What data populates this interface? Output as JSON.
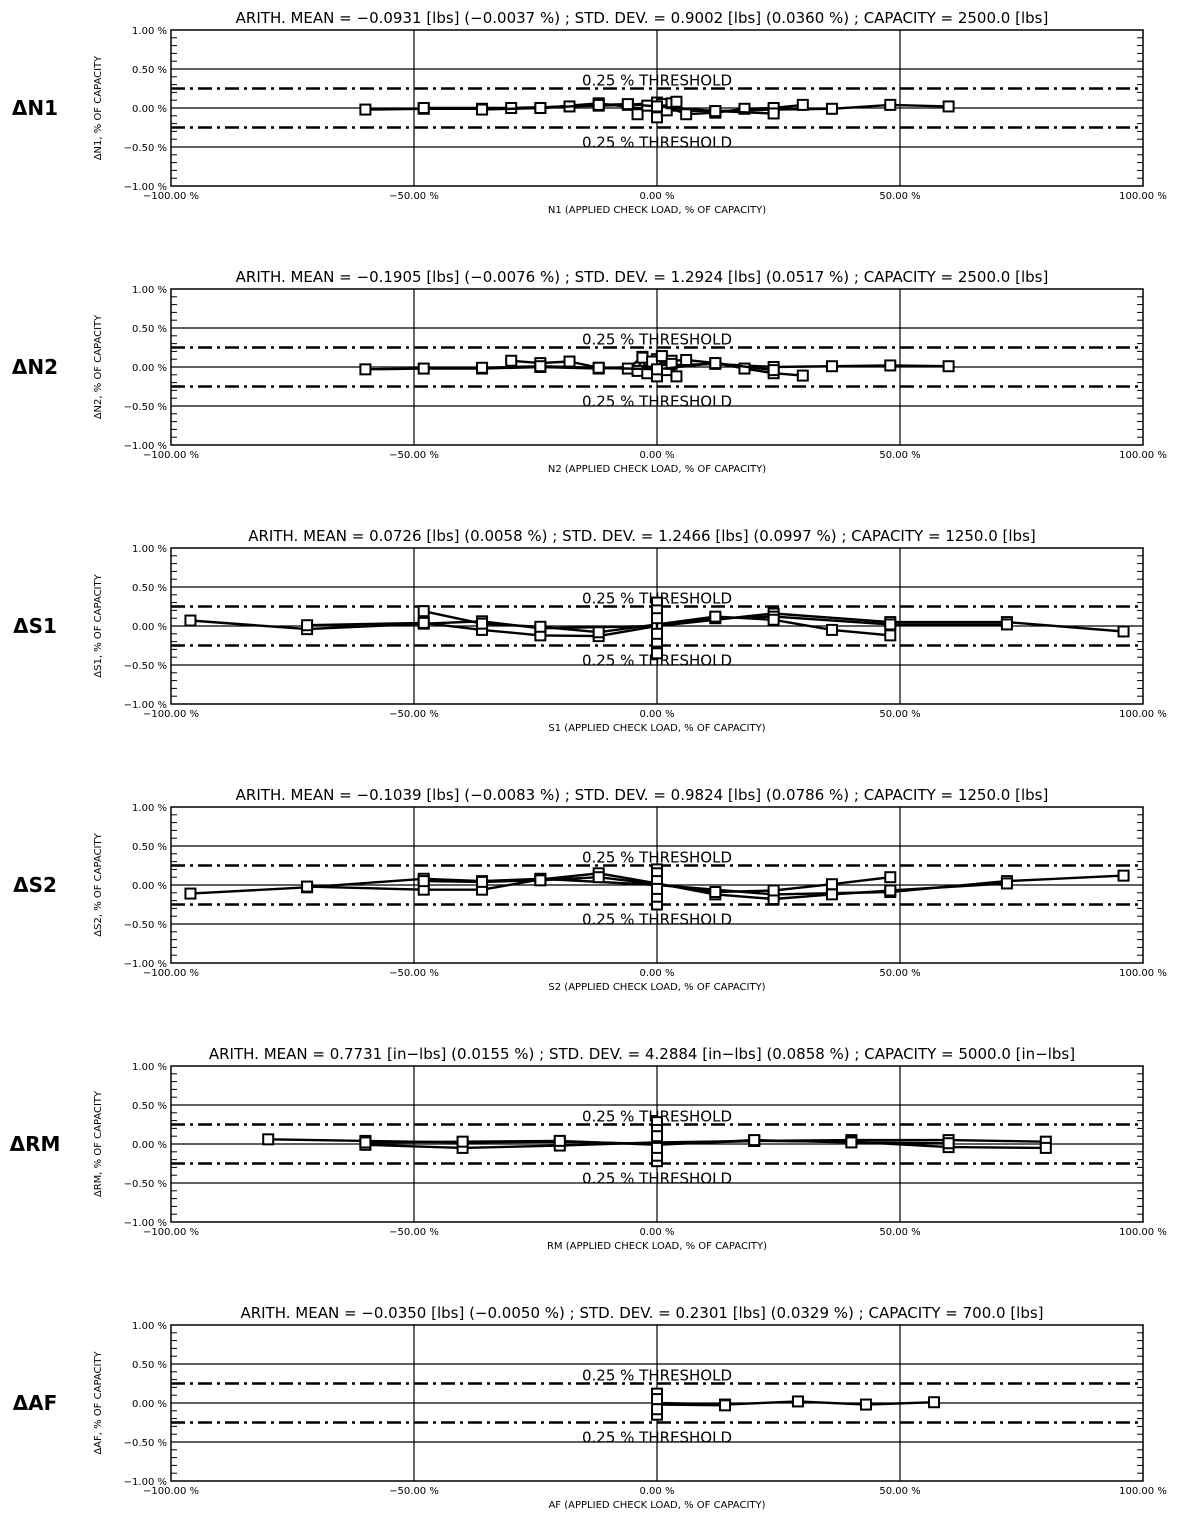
{
  "threshold_label": "0.25 % THRESHOLD",
  "chart_data": [
    {
      "type": "line",
      "id": "N1",
      "side_label": "ΔN1",
      "title": "ARITH. MEAN = −0.0931 [lbs] (−0.0037 %)  ;  STD. DEV. = 0.9002 [lbs] (0.0360 %)  ;  CAPACITY = 2500.0 [lbs]",
      "xlabel": "N1 (APPLIED CHECK LOAD, % OF CAPACITY)",
      "ylabel": "ΔN1, % OF CAPACITY",
      "xlim": [
        -100,
        100
      ],
      "ylim": [
        -1,
        1
      ],
      "xticks": [
        "−100.00 %",
        "−50.00 %",
        "0.00 %",
        "50.00 %",
        "100.00 %"
      ],
      "yticks": [
        "1.00 %",
        "0.50 %",
        "0.00 %",
        "−0.50 %",
        "−1.00 %"
      ],
      "threshold": 0.25,
      "series": [
        {
          "x": [
            -60,
            -48,
            -36,
            -24,
            -12,
            0,
            12,
            24,
            36,
            48,
            60
          ],
          "y": [
            -0.02,
            -0.01,
            -0.01,
            0.0,
            0.06,
            -0.03,
            -0.04,
            -0.02,
            -0.01,
            0.04,
            0.02
          ]
        },
        {
          "x": [
            -48,
            -30,
            -18,
            -12,
            -6,
            0,
            6,
            12,
            18,
            24,
            30
          ],
          "y": [
            0.0,
            0.0,
            0.02,
            0.03,
            0.04,
            0.07,
            -0.08,
            -0.06,
            -0.01,
            0.0,
            0.04
          ]
        },
        {
          "x": [
            -4,
            -2,
            0,
            1,
            2,
            3,
            4
          ],
          "y": [
            -0.08,
            0.03,
            -0.12,
            0.05,
            -0.03,
            0.06,
            0.08
          ]
        },
        {
          "x": [
            -36,
            -24,
            -12,
            -6,
            0,
            12,
            24
          ],
          "y": [
            -0.02,
            0.0,
            0.04,
            0.05,
            0.02,
            -0.04,
            -0.07
          ]
        }
      ]
    },
    {
      "type": "line",
      "id": "N2",
      "side_label": "ΔN2",
      "title": "ARITH. MEAN = −0.1905 [lbs] (−0.0076 %)  ;  STD. DEV. = 1.2924 [lbs] (0.0517 %)  ;  CAPACITY = 2500.0 [lbs]",
      "xlabel": "N2 (APPLIED CHECK LOAD, % OF CAPACITY)",
      "ylabel": "ΔN2, % OF CAPACITY",
      "xlim": [
        -100,
        100
      ],
      "ylim": [
        -1,
        1
      ],
      "xticks": [
        "−100.00 %",
        "−50.00 %",
        "0.00 %",
        "50.00 %",
        "100.00 %"
      ],
      "yticks": [
        "1.00 %",
        "0.50 %",
        "0.00 %",
        "−0.50 %",
        "−1.00 %"
      ],
      "threshold": 0.25,
      "series": [
        {
          "x": [
            -60,
            -48,
            -36,
            -24,
            -12,
            0,
            12,
            24,
            36,
            48,
            60
          ],
          "y": [
            -0.03,
            -0.02,
            -0.02,
            0.0,
            -0.02,
            0.02,
            0.04,
            0.0,
            0.01,
            0.02,
            0.01
          ]
        },
        {
          "x": [
            -30,
            -24,
            -18,
            -12,
            -6,
            -3,
            0,
            3,
            6,
            12,
            18,
            24,
            30
          ],
          "y": [
            0.08,
            0.05,
            0.07,
            -0.01,
            -0.02,
            0.13,
            0.1,
            0.08,
            0.09,
            0.05,
            -0.02,
            -0.08,
            -0.11
          ]
        },
        {
          "x": [
            -4,
            -3,
            -2,
            -1,
            0,
            1,
            2,
            3,
            4
          ],
          "y": [
            -0.05,
            0.12,
            -0.08,
            0.07,
            -0.12,
            0.14,
            -0.04,
            0.04,
            -0.12
          ]
        },
        {
          "x": [
            -36,
            -24,
            -12,
            0,
            12,
            24
          ],
          "y": [
            -0.01,
            0.01,
            -0.01,
            -0.03,
            0.05,
            -0.04
          ]
        }
      ]
    },
    {
      "type": "line",
      "id": "S1",
      "side_label": "ΔS1",
      "title": "ARITH. MEAN = 0.0726 [lbs] (0.0058 %)  ;  STD. DEV. = 1.2466 [lbs] (0.0997 %)  ;  CAPACITY = 1250.0 [lbs]",
      "xlabel": "S1 (APPLIED CHECK LOAD, % OF CAPACITY)",
      "ylabel": "ΔS1, % OF CAPACITY",
      "xlim": [
        -100,
        100
      ],
      "ylim": [
        -1,
        1
      ],
      "xticks": [
        "−100.00 %",
        "−50.00 %",
        "0.00 %",
        "50.00 %",
        "100.00 %"
      ],
      "yticks": [
        "1.00 %",
        "0.50 %",
        "0.00 %",
        "−0.50 %",
        "−1.00 %"
      ],
      "threshold": 0.25,
      "series": [
        {
          "x": [
            -96,
            -72,
            -48,
            -36,
            -24,
            0,
            24,
            48,
            72,
            96
          ],
          "y": [
            0.07,
            -0.04,
            0.03,
            0.06,
            -0.03,
            0.0,
            0.16,
            0.05,
            0.05,
            -0.07
          ]
        },
        {
          "x": [
            -72,
            -48,
            -36,
            -24,
            -12,
            0,
            12,
            24,
            48,
            72
          ],
          "y": [
            0.01,
            0.04,
            -0.05,
            -0.12,
            -0.13,
            0.0,
            0.1,
            0.12,
            0.02,
            0.02
          ]
        },
        {
          "x": [
            -48,
            -36,
            -24,
            -12,
            0,
            12,
            24,
            36,
            48
          ],
          "y": [
            0.19,
            0.03,
            -0.01,
            -0.08,
            0.02,
            0.12,
            0.08,
            -0.05,
            -0.12
          ]
        },
        {
          "x": [
            0,
            0,
            0,
            0,
            0,
            0
          ],
          "y": [
            0.3,
            -0.35,
            0.2,
            -0.2,
            0.1,
            -0.1
          ]
        }
      ]
    },
    {
      "type": "line",
      "id": "S2",
      "side_label": "ΔS2",
      "title": "ARITH. MEAN = −0.1039 [lbs] (−0.0083 %)  ;  STD. DEV. = 0.9824 [lbs] (0.0786 %)  ;  CAPACITY = 1250.0 [lbs]",
      "xlabel": "S2 (APPLIED CHECK LOAD, % OF CAPACITY)",
      "ylabel": "ΔS2, % OF CAPACITY",
      "xlim": [
        -100,
        100
      ],
      "ylim": [
        -1,
        1
      ],
      "xticks": [
        "−100.00 %",
        "−50.00 %",
        "0.00 %",
        "50.00 %",
        "100.00 %"
      ],
      "yticks": [
        "1.00 %",
        "0.50 %",
        "0.00 %",
        "−0.50 %",
        "−1.00 %"
      ],
      "threshold": 0.25,
      "series": [
        {
          "x": [
            -96,
            -72,
            -48,
            -36,
            -24,
            0,
            24,
            48,
            72,
            96
          ],
          "y": [
            -0.11,
            -0.03,
            0.08,
            0.05,
            0.08,
            0.0,
            -0.12,
            -0.09,
            0.05,
            0.12
          ]
        },
        {
          "x": [
            -72,
            -48,
            -36,
            -24,
            -12,
            0,
            12,
            24,
            36,
            48,
            72
          ],
          "y": [
            -0.02,
            -0.06,
            -0.06,
            0.07,
            0.15,
            0.02,
            -0.12,
            -0.18,
            -0.12,
            -0.07,
            0.02
          ]
        },
        {
          "x": [
            -48,
            -36,
            -24,
            -12,
            0,
            12,
            24,
            36,
            48
          ],
          "y": [
            0.05,
            0.04,
            0.06,
            0.1,
            0.01,
            -0.09,
            -0.07,
            0.01,
            0.1
          ]
        },
        {
          "x": [
            0,
            0,
            0,
            0,
            0,
            0
          ],
          "y": [
            0.2,
            -0.25,
            0.15,
            -0.15,
            0.05,
            -0.05
          ]
        }
      ]
    },
    {
      "type": "line",
      "id": "RM",
      "side_label": "ΔRM",
      "title": "ARITH. MEAN = 0.7731 [in−lbs] (0.0155 %)  ;  STD. DEV. = 4.2884 [in−lbs] (0.0858 %)  ;  CAPACITY = 5000.0 [in−lbs]",
      "xlabel": "RM (APPLIED CHECK LOAD, % OF CAPACITY)",
      "ylabel": "ΔRM, % OF CAPACITY",
      "xlim": [
        -100,
        100
      ],
      "ylim": [
        -1,
        1
      ],
      "xticks": [
        "−100.00 %",
        "−50.00 %",
        "0.00 %",
        "50.00 %",
        "100.00 %"
      ],
      "yticks": [
        "1.00 %",
        "0.50 %",
        "0.00 %",
        "−0.50 %",
        "−1.00 %"
      ],
      "threshold": 0.25,
      "series": [
        {
          "x": [
            -80,
            -60,
            -40,
            -20,
            0,
            20,
            40,
            60,
            80
          ],
          "y": [
            0.06,
            0.04,
            0.02,
            0.03,
            0.0,
            0.04,
            0.05,
            0.05,
            0.03
          ]
        },
        {
          "x": [
            -60,
            -40,
            -20,
            0,
            20,
            40,
            60,
            80
          ],
          "y": [
            -0.01,
            -0.05,
            -0.02,
            0.02,
            0.04,
            0.03,
            -0.04,
            -0.05
          ]
        },
        {
          "x": [
            -60,
            -40,
            -20,
            0,
            20,
            40,
            60
          ],
          "y": [
            0.02,
            0.03,
            0.04,
            -0.01,
            0.05,
            0.02,
            0.01
          ]
        },
        {
          "x": [
            0,
            0,
            0,
            0,
            0,
            0
          ],
          "y": [
            0.28,
            -0.22,
            0.18,
            -0.15,
            0.1,
            -0.05
          ]
        }
      ]
    },
    {
      "type": "line",
      "id": "AF",
      "side_label": "ΔAF",
      "title": "ARITH. MEAN = −0.0350 [lbs] (−0.0050 %)  ;  STD. DEV. = 0.2301 [lbs] (0.0329 %)  ;  CAPACITY = 700.0 [lbs]",
      "xlabel": "AF (APPLIED CHECK LOAD, % OF CAPACITY)",
      "ylabel": "ΔAF, % OF CAPACITY",
      "xlim": [
        -100,
        100
      ],
      "ylim": [
        -1,
        1
      ],
      "xticks": [
        "−100.00 %",
        "−50.00 %",
        "0.00 %",
        "50.00 %",
        "100.00 %"
      ],
      "yticks": [
        "1.00 %",
        "0.50 %",
        "0.00 %",
        "−0.50 %",
        "−1.00 %"
      ],
      "threshold": 0.25,
      "series": [
        {
          "x": [
            0,
            14,
            29,
            43,
            57
          ],
          "y": [
            0.0,
            -0.02,
            0.02,
            -0.02,
            0.01
          ]
        },
        {
          "x": [
            0,
            14
          ],
          "y": [
            -0.02,
            -0.03
          ]
        },
        {
          "x": [
            0,
            0,
            0,
            0
          ],
          "y": [
            0.12,
            -0.15,
            0.05,
            -0.08
          ]
        }
      ]
    }
  ]
}
